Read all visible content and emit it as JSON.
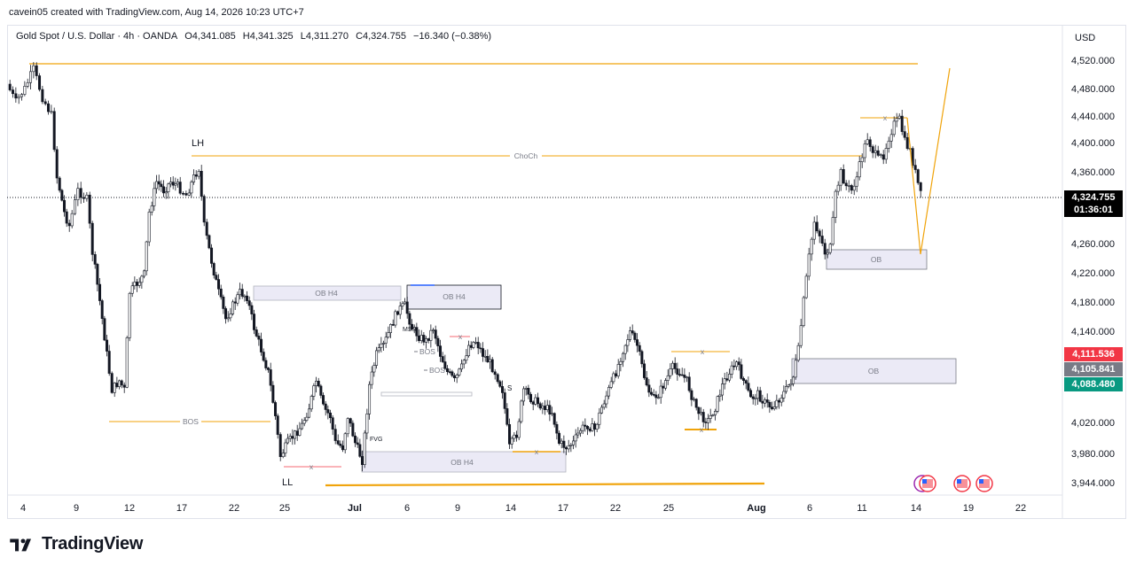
{
  "header": {
    "created_text": "cavein05 created with TradingView.com, Aug 14, 2026 10:23 UTC+7"
  },
  "legend": {
    "symbol": "Gold Spot / U.S. Dollar · 4h · OANDA",
    "open": "O4,341.085",
    "high": "H4,341.325",
    "low": "L4,311.270",
    "close": "C4,324.755",
    "change": "−16.340 (−0.38%)"
  },
  "currency_label": "USD",
  "price_axis": {
    "ticks": [
      "4,520.000",
      "4,480.000",
      "4,440.000",
      "4,400.000",
      "4,360.000",
      "4,260.000",
      "4,220.000",
      "4,180.000",
      "4,140.000",
      "4,020.000",
      "3,980.000",
      "3,944.000"
    ],
    "current_price": "4,324.755",
    "countdown": "01:36:01",
    "tags": [
      {
        "label": "4,111.536",
        "color": "#f23645"
      },
      {
        "label": "4,105.841",
        "color": "#787b86"
      },
      {
        "label": "4,088.480",
        "color": "#089981"
      }
    ]
  },
  "time_axis": {
    "ticks": [
      "4",
      "9",
      "12",
      "17",
      "22",
      "25",
      "Jul",
      "6",
      "9",
      "14",
      "17",
      "22",
      "25",
      "Aug",
      "6",
      "11",
      "14",
      "19",
      "22"
    ]
  },
  "annotations": {
    "lh": "LH",
    "ll": "LL",
    "choch": "ChoCh",
    "bos": "BOS",
    "fvg": "FVG",
    "mss": "MSS",
    "ob": "OB",
    "ob_h4": "OB H4",
    "x": "x",
    "s": "S"
  },
  "colors": {
    "up": "#131722",
    "down": "#131722",
    "level": "#f0a30a",
    "zone_fill": "#ebeaf6",
    "zone_border": "#9b9ba8",
    "accent": "#2962ff"
  },
  "logo_text": "TradingView",
  "chart_data": {
    "type": "candlestick",
    "symbol": "XAUUSD",
    "timeframe": "4h",
    "y_range": [
      3944,
      4520
    ],
    "ohlc_last": {
      "open": 4341.085,
      "high": 4341.325,
      "low": 4311.27,
      "close": 4324.755
    },
    "levels": [
      {
        "label": "ChoCh",
        "price": 4382
      },
      {
        "label": "BOS",
        "price": 4021
      },
      {
        "price": 4513
      },
      {
        "price": 3944
      }
    ],
    "zones": [
      {
        "label": "OB",
        "top": 4249,
        "bottom": 4232
      },
      {
        "label": "OB",
        "top": 4122,
        "bottom": 4093
      },
      {
        "label": "OB H4",
        "top": 4211,
        "bottom": 4199
      },
      {
        "label": "OB H4",
        "top": 4213,
        "bottom": 4189
      },
      {
        "label": "OB H4",
        "top": 3989,
        "bottom": 3968
      }
    ],
    "projection": [
      4324,
      4250,
      4505
    ]
  }
}
